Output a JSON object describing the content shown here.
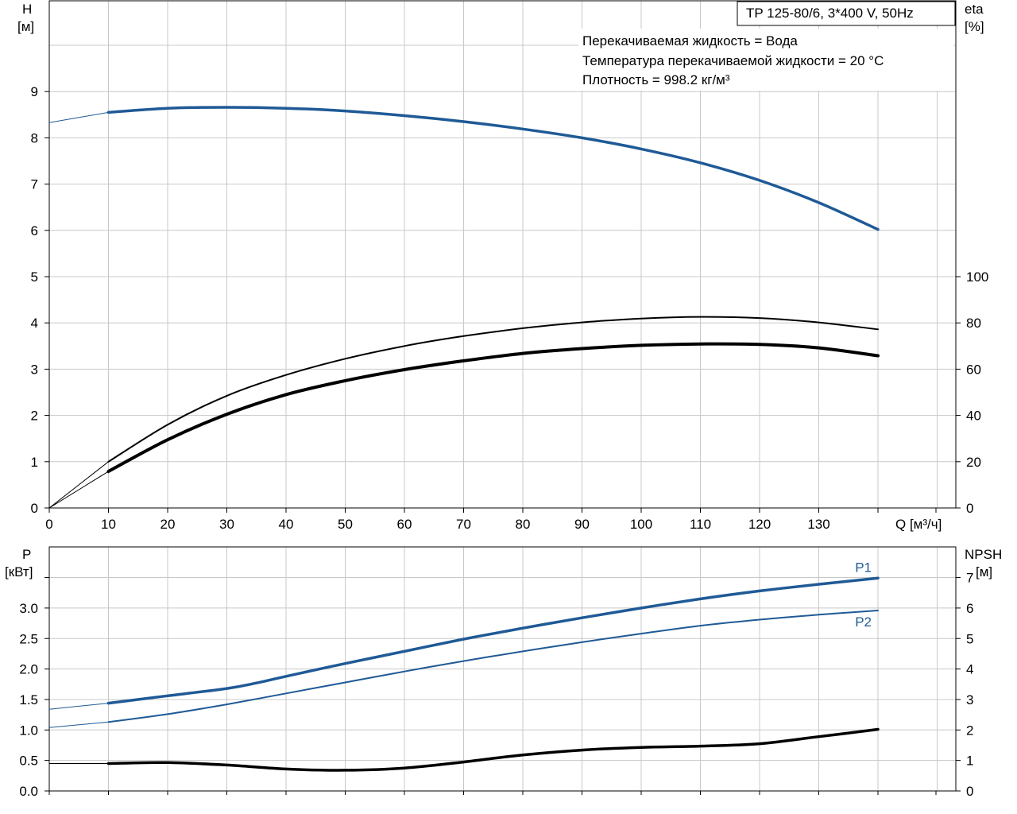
{
  "chart_data": [
    {
      "type": "line",
      "title_box": "TP 125-80/6, 3*400 V, 50Hz",
      "info": [
        "Перекачиваемая жидкость = Вода",
        "Температура перекачиваемой жидкости = 20 °C",
        "Плотность = 998.2 кг/м³"
      ],
      "ylabel_left": "H",
      "ylabel_left_unit": "[м]",
      "ylabel_right": "eta",
      "ylabel_right_unit": "[%]",
      "xlabel": "Q [м³/ч]",
      "xlim": [
        0,
        150
      ],
      "x_ticks": [
        0,
        10,
        20,
        30,
        40,
        50,
        60,
        70,
        80,
        90,
        100,
        110,
        120,
        130
      ],
      "ylim_left": [
        0,
        10.8
      ],
      "y_ticks_left": [
        0,
        1,
        2,
        3,
        4,
        5,
        6,
        7,
        8,
        9
      ],
      "eta_ticks": [
        0,
        20,
        40,
        60,
        80,
        100
      ],
      "grid": true,
      "series": [
        {
          "color": "#1f5a96",
          "width": 3.5,
          "ext": [
            [
              0,
              8.33
            ],
            [
              10,
              8.55
            ]
          ],
          "points": [
            [
              10,
              8.55
            ],
            [
              20,
              8.64
            ],
            [
              30,
              8.66
            ],
            [
              40,
              8.64
            ],
            [
              50,
              8.58
            ],
            [
              60,
              8.48
            ],
            [
              70,
              8.35
            ],
            [
              80,
              8.19
            ],
            [
              90,
              8.0
            ],
            [
              100,
              7.76
            ],
            [
              110,
              7.46
            ],
            [
              120,
              7.08
            ],
            [
              130,
              6.6
            ],
            [
              140,
              6.02
            ]
          ]
        },
        {
          "axis": "eta",
          "color": "#000000",
          "width": 2,
          "ext": [
            [
              0,
              0
            ],
            [
              10,
              20
            ]
          ],
          "points": [
            [
              10,
              20
            ],
            [
              20,
              36
            ],
            [
              30,
              48.5
            ],
            [
              40,
              57.5
            ],
            [
              50,
              64.5
            ],
            [
              60,
              70
            ],
            [
              70,
              74.3
            ],
            [
              80,
              77.7
            ],
            [
              90,
              80.2
            ],
            [
              100,
              81.9
            ],
            [
              110,
              82.6
            ],
            [
              120,
              82.1
            ],
            [
              130,
              80.2
            ],
            [
              140,
              77.2
            ]
          ]
        },
        {
          "axis": "eta",
          "color": "#000000",
          "width": 4,
          "ext": [
            [
              0,
              0
            ],
            [
              10,
              15.8
            ]
          ],
          "points": [
            [
              10,
              15.8
            ],
            [
              20,
              29.5
            ],
            [
              30,
              40.5
            ],
            [
              40,
              49
            ],
            [
              50,
              55
            ],
            [
              60,
              59.8
            ],
            [
              70,
              63.6
            ],
            [
              80,
              66.8
            ],
            [
              90,
              68.9
            ],
            [
              100,
              70.3
            ],
            [
              110,
              70.9
            ],
            [
              120,
              70.7
            ],
            [
              130,
              69.2
            ],
            [
              140,
              65.8
            ]
          ]
        }
      ]
    },
    {
      "type": "line",
      "ylabel_left": "P",
      "ylabel_left_unit": "[кВт]",
      "ylabel_right": "NPSH",
      "ylabel_right_unit": "[м]",
      "xlim": [
        0,
        150
      ],
      "ylim_left": [
        0,
        4.0
      ],
      "y_ticks_left": [
        "0.0",
        "0.5",
        "1.0",
        "1.5",
        "2.0",
        "2.5",
        "3.0"
      ],
      "y_ticks_right": [
        0,
        1,
        2,
        3,
        4,
        5,
        6,
        7
      ],
      "grid": true,
      "series": [
        {
          "name": "P1",
          "color": "#1f5a96",
          "width": 3.5,
          "ext": [
            [
              0,
              1.34
            ],
            [
              10,
              1.44
            ]
          ],
          "points": [
            [
              10,
              1.44
            ],
            [
              20,
              1.56
            ],
            [
              30,
              1.68
            ],
            [
              35,
              1.77
            ],
            [
              40,
              1.88
            ],
            [
              50,
              2.09
            ],
            [
              60,
              2.29
            ],
            [
              70,
              2.49
            ],
            [
              80,
              2.67
            ],
            [
              90,
              2.84
            ],
            [
              100,
              3.0
            ],
            [
              110,
              3.15
            ],
            [
              120,
              3.28
            ],
            [
              130,
              3.39
            ],
            [
              140,
              3.49
            ]
          ]
        },
        {
          "name": "P2",
          "color": "#1f5a96",
          "width": 2,
          "ext": [
            [
              0,
              1.04
            ],
            [
              10,
              1.13
            ]
          ],
          "points": [
            [
              10,
              1.13
            ],
            [
              20,
              1.26
            ],
            [
              30,
              1.42
            ],
            [
              40,
              1.6
            ],
            [
              50,
              1.78
            ],
            [
              60,
              1.96
            ],
            [
              70,
              2.13
            ],
            [
              80,
              2.29
            ],
            [
              90,
              2.44
            ],
            [
              100,
              2.58
            ],
            [
              110,
              2.71
            ],
            [
              120,
              2.81
            ],
            [
              130,
              2.89
            ],
            [
              140,
              2.96
            ]
          ]
        },
        {
          "axis": "npsh",
          "color": "#000000",
          "width": 3.5,
          "ext": [
            [
              0,
              0.9
            ],
            [
              10,
              0.9
            ]
          ],
          "points": [
            [
              10,
              0.9
            ],
            [
              20,
              0.93
            ],
            [
              30,
              0.85
            ],
            [
              40,
              0.72
            ],
            [
              50,
              0.68
            ],
            [
              60,
              0.75
            ],
            [
              70,
              0.95
            ],
            [
              80,
              1.18
            ],
            [
              90,
              1.34
            ],
            [
              100,
              1.43
            ],
            [
              110,
              1.47
            ],
            [
              120,
              1.55
            ],
            [
              130,
              1.78
            ],
            [
              140,
              2.02
            ]
          ]
        }
      ]
    }
  ]
}
